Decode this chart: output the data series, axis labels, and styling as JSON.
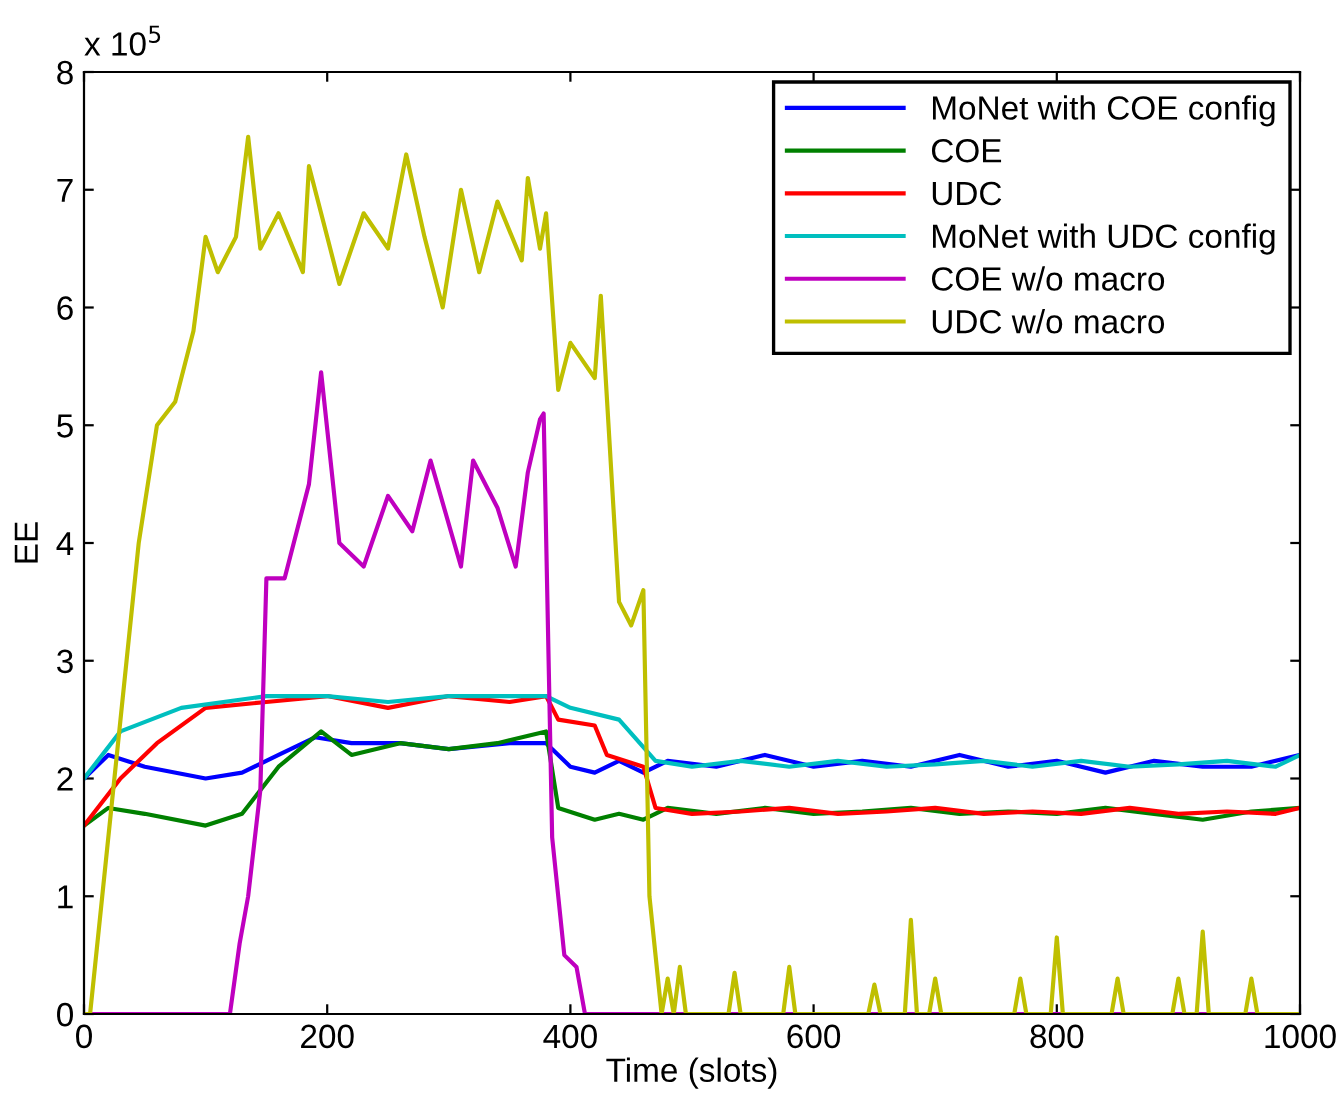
{
  "chart_data": {
    "type": "line",
    "xlabel": "Time (slots)",
    "ylabel": "EE",
    "annotations": [
      "x 10$^{5}$"
    ],
    "xlim": [
      0,
      1000
    ],
    "ylim": [
      0,
      8
    ],
    "xticks": [
      0,
      200,
      400,
      600,
      800,
      1000
    ],
    "yticks": [
      0,
      1,
      2,
      3,
      4,
      5,
      6,
      7,
      8
    ],
    "grid": false,
    "legend": "top right",
    "series": [
      {
        "name": "MoNet with COE config",
        "color": "#0000ff",
        "x": [
          0,
          20,
          50,
          100,
          130,
          160,
          190,
          220,
          260,
          300,
          350,
          380,
          400,
          420,
          440,
          460,
          480,
          520,
          560,
          600,
          640,
          680,
          720,
          760,
          800,
          840,
          880,
          920,
          960,
          1000
        ],
        "values": [
          2.0,
          2.2,
          2.1,
          2.0,
          2.05,
          2.2,
          2.35,
          2.3,
          2.3,
          2.25,
          2.3,
          2.3,
          2.1,
          2.05,
          2.15,
          2.05,
          2.15,
          2.1,
          2.2,
          2.1,
          2.15,
          2.1,
          2.2,
          2.1,
          2.15,
          2.05,
          2.15,
          2.1,
          2.1,
          2.2
        ]
      },
      {
        "name": "COE",
        "color": "#008000",
        "x": [
          0,
          20,
          50,
          100,
          130,
          160,
          195,
          220,
          260,
          300,
          340,
          380,
          390,
          420,
          440,
          460,
          480,
          520,
          560,
          600,
          640,
          680,
          720,
          760,
          800,
          840,
          880,
          920,
          960,
          1000
        ],
        "values": [
          1.6,
          1.75,
          1.7,
          1.6,
          1.7,
          2.1,
          2.4,
          2.2,
          2.3,
          2.25,
          2.3,
          2.4,
          1.75,
          1.65,
          1.7,
          1.65,
          1.75,
          1.7,
          1.75,
          1.7,
          1.72,
          1.75,
          1.7,
          1.72,
          1.7,
          1.75,
          1.7,
          1.65,
          1.72,
          1.75
        ]
      },
      {
        "name": "UDC",
        "color": "#ff0000",
        "x": [
          0,
          30,
          60,
          100,
          150,
          200,
          250,
          300,
          350,
          380,
          390,
          420,
          430,
          460,
          470,
          500,
          540,
          580,
          620,
          660,
          700,
          740,
          780,
          820,
          860,
          900,
          940,
          980,
          1000
        ],
        "values": [
          1.6,
          2.0,
          2.3,
          2.6,
          2.65,
          2.7,
          2.6,
          2.7,
          2.65,
          2.7,
          2.5,
          2.45,
          2.2,
          2.1,
          1.75,
          1.7,
          1.72,
          1.75,
          1.7,
          1.72,
          1.75,
          1.7,
          1.72,
          1.7,
          1.75,
          1.7,
          1.72,
          1.7,
          1.75
        ]
      },
      {
        "name": "MoNet with UDC config",
        "color": "#00bfbf",
        "x": [
          0,
          30,
          80,
          150,
          200,
          250,
          300,
          350,
          380,
          400,
          440,
          470,
          500,
          540,
          580,
          620,
          660,
          700,
          740,
          780,
          820,
          860,
          900,
          940,
          980,
          1000
        ],
        "values": [
          2.0,
          2.4,
          2.6,
          2.7,
          2.7,
          2.65,
          2.7,
          2.7,
          2.7,
          2.6,
          2.5,
          2.15,
          2.1,
          2.15,
          2.1,
          2.15,
          2.1,
          2.12,
          2.15,
          2.1,
          2.15,
          2.1,
          2.12,
          2.15,
          2.1,
          2.2
        ]
      },
      {
        "name": "COE w/o macro",
        "color": "#bf00bf",
        "x": [
          0,
          120,
          128,
          135,
          145,
          150,
          165,
          185,
          195,
          210,
          230,
          250,
          270,
          285,
          310,
          320,
          340,
          355,
          365,
          375,
          378,
          385,
          395,
          405,
          412,
          1000
        ],
        "values": [
          0,
          0,
          0.6,
          1.0,
          1.9,
          3.7,
          3.7,
          4.5,
          5.45,
          4.0,
          3.8,
          4.4,
          4.1,
          4.7,
          3.8,
          4.7,
          4.3,
          3.8,
          4.6,
          5.05,
          5.1,
          1.5,
          0.5,
          0.4,
          0,
          0
        ]
      },
      {
        "name": "UDC w/o macro",
        "color": "#bfbf00",
        "x": [
          0,
          5,
          15,
          25,
          35,
          45,
          60,
          75,
          90,
          100,
          110,
          125,
          135,
          145,
          160,
          180,
          185,
          200,
          210,
          230,
          250,
          265,
          280,
          295,
          310,
          325,
          340,
          360,
          365,
          375,
          380,
          390,
          400,
          420,
          425,
          440,
          450,
          460,
          465,
          475,
          480,
          485,
          490,
          495,
          530,
          535,
          540,
          575,
          580,
          585,
          645,
          650,
          655,
          675,
          680,
          685,
          695,
          700,
          705,
          765,
          770,
          775,
          795,
          800,
          805,
          845,
          850,
          855,
          895,
          900,
          905,
          915,
          920,
          925,
          955,
          960,
          965,
          1000
        ],
        "values": [
          0,
          0,
          1.0,
          2.0,
          3.0,
          4.0,
          5.0,
          5.2,
          5.8,
          6.6,
          6.3,
          6.6,
          7.45,
          6.5,
          6.8,
          6.3,
          7.2,
          6.6,
          6.2,
          6.8,
          6.5,
          7.3,
          6.6,
          6.0,
          7.0,
          6.3,
          6.9,
          6.4,
          7.1,
          6.5,
          6.8,
          5.3,
          5.7,
          5.4,
          6.1,
          3.5,
          3.3,
          3.6,
          1.0,
          0,
          0.3,
          0,
          0.4,
          0,
          0,
          0.35,
          0,
          0,
          0.4,
          0,
          0,
          0.25,
          0,
          0,
          0.8,
          0,
          0,
          0.3,
          0,
          0,
          0.3,
          0,
          0,
          0.65,
          0,
          0,
          0.3,
          0,
          0,
          0.3,
          0,
          0,
          0.7,
          0,
          0,
          0.3,
          0,
          0
        ]
      }
    ]
  }
}
